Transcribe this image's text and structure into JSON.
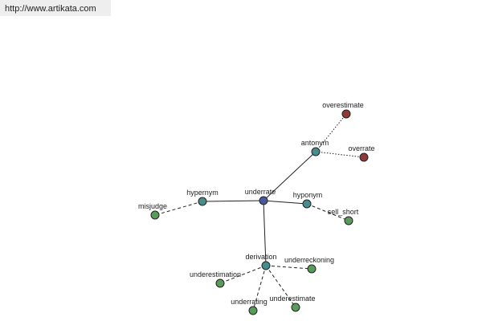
{
  "header": {
    "url": "http://www.artikata.com"
  },
  "nodes": [
    {
      "label": "underrate"
    },
    {
      "label": "hypernym"
    },
    {
      "label": "misjudge"
    },
    {
      "label": "hyponym"
    },
    {
      "label": "sell_short"
    },
    {
      "label": "antonym"
    },
    {
      "label": "overestimate"
    },
    {
      "label": "overrate"
    },
    {
      "label": "derivation"
    },
    {
      "label": "underreckoning"
    },
    {
      "label": "underestimation"
    },
    {
      "label": "underrating"
    },
    {
      "label": "underestimate"
    }
  ]
}
